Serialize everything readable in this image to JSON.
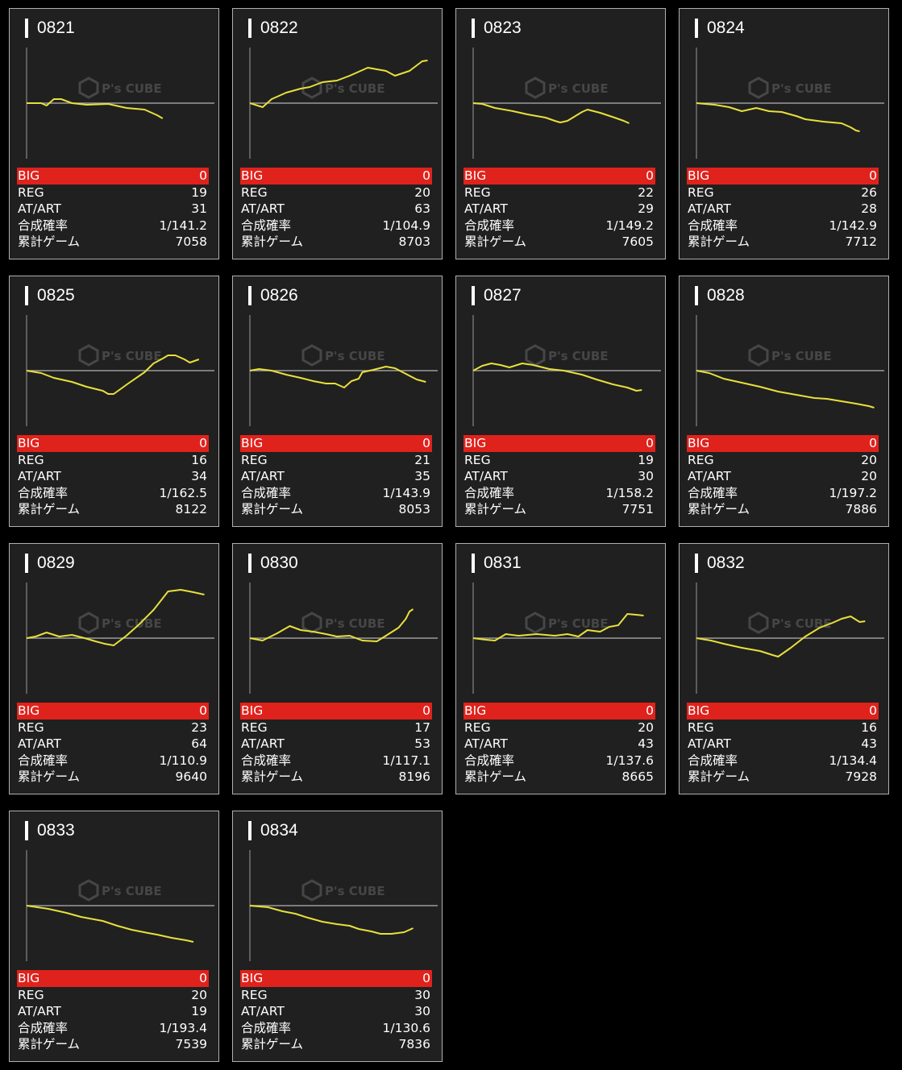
{
  "labels": {
    "big": "BIG",
    "reg": "REG",
    "atart": "AT/ART",
    "prob": "合成確率",
    "games": "累計ゲーム"
  },
  "watermark": {
    "text": "P's CUBE",
    "icon": "cube-logo-icon"
  },
  "colors": {
    "background": "#000000",
    "card": "#202020",
    "big_row": "#e0221c",
    "line": "#e8e03c",
    "baseline": "#9a9a9a"
  },
  "machines": [
    {
      "id": "0821",
      "big": "0",
      "reg": "19",
      "atart": "31",
      "prob": "1/141.2",
      "games": "7058"
    },
    {
      "id": "0822",
      "big": "0",
      "reg": "20",
      "atart": "63",
      "prob": "1/104.9",
      "games": "8703"
    },
    {
      "id": "0823",
      "big": "0",
      "reg": "22",
      "atart": "29",
      "prob": "1/149.2",
      "games": "7605"
    },
    {
      "id": "0824",
      "big": "0",
      "reg": "26",
      "atart": "28",
      "prob": "1/142.9",
      "games": "7712"
    },
    {
      "id": "0825",
      "big": "0",
      "reg": "16",
      "atart": "34",
      "prob": "1/162.5",
      "games": "8122"
    },
    {
      "id": "0826",
      "big": "0",
      "reg": "21",
      "atart": "35",
      "prob": "1/143.9",
      "games": "8053"
    },
    {
      "id": "0827",
      "big": "0",
      "reg": "19",
      "atart": "30",
      "prob": "1/158.2",
      "games": "7751"
    },
    {
      "id": "0828",
      "big": "0",
      "reg": "20",
      "atart": "20",
      "prob": "1/197.2",
      "games": "7886"
    },
    {
      "id": "0829",
      "big": "0",
      "reg": "23",
      "atart": "64",
      "prob": "1/110.9",
      "games": "9640"
    },
    {
      "id": "0830",
      "big": "0",
      "reg": "17",
      "atart": "53",
      "prob": "1/117.1",
      "games": "8196"
    },
    {
      "id": "0831",
      "big": "0",
      "reg": "20",
      "atart": "43",
      "prob": "1/137.6",
      "games": "8665"
    },
    {
      "id": "0832",
      "big": "0",
      "reg": "16",
      "atart": "43",
      "prob": "1/134.4",
      "games": "7928"
    },
    {
      "id": "0833",
      "big": "0",
      "reg": "20",
      "atart": "19",
      "prob": "1/193.4",
      "games": "7539"
    },
    {
      "id": "0834",
      "big": "0",
      "reg": "30",
      "atart": "30",
      "prob": "1/130.6",
      "games": "7836"
    }
  ]
}
